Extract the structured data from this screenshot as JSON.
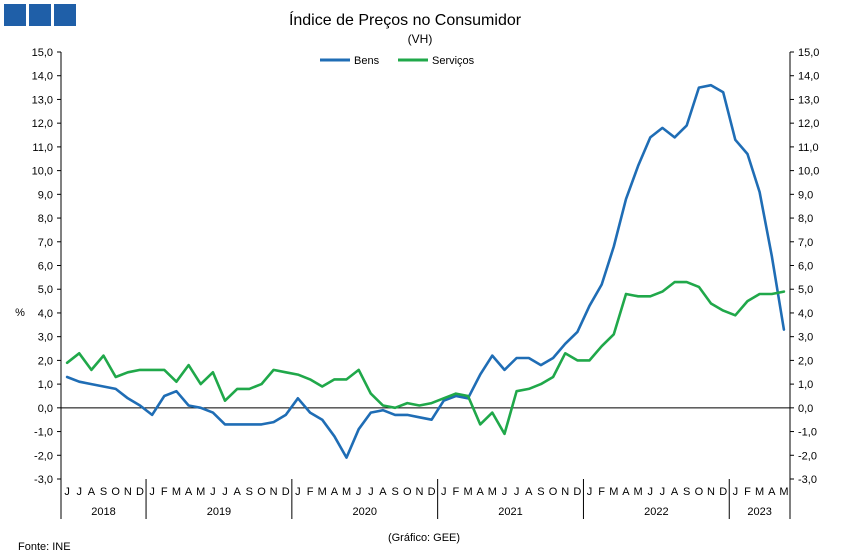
{
  "colors": {
    "bens": "#1f6db5",
    "servicos": "#20a84a",
    "logo": "#1f5fa8"
  },
  "logo_icon": "gee-logo-squares",
  "chart_data": {
    "type": "line",
    "title": "Índice de Preços no Consumidor",
    "subtitle": "(VH)",
    "ylabel_left": "%",
    "ylim": [
      -3.0,
      15.0
    ],
    "ystep": 1.0,
    "grid": false,
    "legend_position": "top-center",
    "y_ticks": [
      "-3,0",
      "-2,0",
      "-1,0",
      "0,0",
      "1,0",
      "2,0",
      "3,0",
      "4,0",
      "5,0",
      "6,0",
      "7,0",
      "8,0",
      "9,0",
      "10,0",
      "11,0",
      "12,0",
      "13,0",
      "14,0",
      "15,0"
    ],
    "months": [
      "J",
      "J",
      "A",
      "S",
      "O",
      "N",
      "D",
      "J",
      "F",
      "M",
      "A",
      "M",
      "J",
      "J",
      "A",
      "S",
      "O",
      "N",
      "D",
      "J",
      "F",
      "M",
      "A",
      "M",
      "J",
      "J",
      "A",
      "S",
      "O",
      "N",
      "D",
      "J",
      "F",
      "M",
      "A",
      "M",
      "J",
      "J",
      "A",
      "S",
      "O",
      "N",
      "D",
      "J",
      "F",
      "M",
      "A",
      "M",
      "J",
      "J",
      "A",
      "S",
      "O",
      "N",
      "D",
      "J",
      "F",
      "M",
      "A",
      "M"
    ],
    "years": [
      {
        "label": "2018",
        "count": 7
      },
      {
        "label": "2019",
        "count": 12
      },
      {
        "label": "2020",
        "count": 12
      },
      {
        "label": "2021",
        "count": 12
      },
      {
        "label": "2022",
        "count": 12
      },
      {
        "label": "2023",
        "count": 5
      }
    ],
    "series": [
      {
        "name": "Bens",
        "color": "#1f6db5",
        "values": [
          1.3,
          1.1,
          1.0,
          0.9,
          0.8,
          0.4,
          0.1,
          -0.3,
          0.5,
          0.7,
          0.1,
          0.0,
          -0.2,
          -0.7,
          -0.7,
          -0.7,
          -0.7,
          -0.6,
          -0.3,
          0.4,
          -0.2,
          -0.5,
          -1.2,
          -2.1,
          -0.9,
          -0.2,
          -0.1,
          -0.3,
          -0.3,
          -0.4,
          -0.5,
          0.3,
          0.5,
          0.4,
          1.4,
          2.2,
          1.6,
          2.1,
          2.1,
          1.8,
          2.1,
          2.7,
          3.2,
          4.3,
          5.2,
          6.8,
          8.8,
          10.2,
          11.4,
          11.8,
          11.4,
          11.9,
          13.5,
          13.6,
          13.3,
          11.3,
          10.7,
          9.1,
          6.4,
          3.3
        ]
      },
      {
        "name": "Serviços",
        "color": "#20a84a",
        "values": [
          1.9,
          2.3,
          1.6,
          2.2,
          1.3,
          1.5,
          1.6,
          1.6,
          1.6,
          1.1,
          1.8,
          1.0,
          1.5,
          0.3,
          0.8,
          0.8,
          1.0,
          1.6,
          1.5,
          1.4,
          1.2,
          0.9,
          1.2,
          1.2,
          1.6,
          0.6,
          0.1,
          0.0,
          0.2,
          0.1,
          0.2,
          0.4,
          0.6,
          0.5,
          -0.7,
          -0.2,
          -1.1,
          0.7,
          0.8,
          1.0,
          1.3,
          2.3,
          2.0,
          2.0,
          2.6,
          3.1,
          4.8,
          4.7,
          4.7,
          4.9,
          5.3,
          5.3,
          5.1,
          4.4,
          4.1,
          3.9,
          4.5,
          4.8,
          4.8,
          4.9
        ]
      }
    ]
  },
  "footer": {
    "source": "Fonte: INE",
    "credit": "(Gráfico: GEE)"
  }
}
